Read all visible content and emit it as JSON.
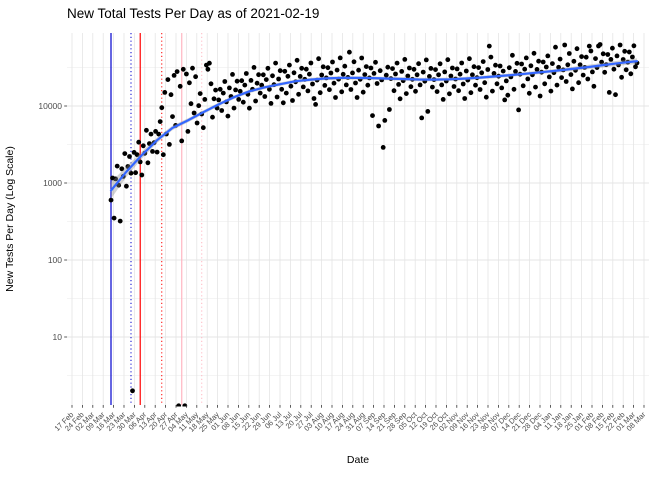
{
  "title": "New Total Tests Per Day as of 2021-02-19",
  "x_axis": {
    "label": "Date",
    "tick_labels": [
      "17 Feb",
      "24 Feb",
      "02 Mar",
      "09 Mar",
      "16 Mar",
      "23 Mar",
      "30 Mar",
      "06 Apr",
      "13 Apr",
      "20 Apr",
      "27 Apr",
      "04 May",
      "11 May",
      "18 May",
      "25 May",
      "01 Jun",
      "08 Jun",
      "15 Jun",
      "22 Jun",
      "29 Jun",
      "06 Jul",
      "13 Jul",
      "20 Jul",
      "27 Jul",
      "03 Aug",
      "10 Aug",
      "17 Aug",
      "24 Aug",
      "31 Aug",
      "07 Sep",
      "14 Sep",
      "21 Sep",
      "28 Sep",
      "05 Oct",
      "12 Oct",
      "19 Oct",
      "26 Oct",
      "02 Nov",
      "09 Nov",
      "16 Nov",
      "23 Nov",
      "30 Nov",
      "07 Dec",
      "14 Dec",
      "21 Dec",
      "28 Dec",
      "04 Jan",
      "11 Jan",
      "18 Jan",
      "25 Jan",
      "01 Feb",
      "08 Feb",
      "15 Feb",
      "22 Feb",
      "01 Mar",
      "08 Mar"
    ]
  },
  "y_axis": {
    "label": "New Tests Per Day (Log Scale)",
    "tick_labels": [
      "10000",
      "1000",
      "100",
      "10"
    ],
    "tick_values": [
      10000,
      1000,
      100,
      10
    ],
    "scale": "log10"
  },
  "colors": {
    "point": "#000000",
    "trend": "#3366FF",
    "band": "#8C8C8C",
    "grid_major": "#E4E4E4",
    "grid_minor": "#F1F1F1",
    "axis_text": "#4D4D4D",
    "tick_mark": "#333333",
    "vline_blue": "#0000CD",
    "vline_red": "#FF0000",
    "vline_pink": "#FFB6C1"
  },
  "chart_data": {
    "type": "scatter",
    "title": "New Total Tests Per Day as of 2021-02-19",
    "xlabel": "Date",
    "ylabel": "New Tests Per Day (Log Scale)",
    "y_scale": "log10",
    "ylim": [
      1.3,
      90000
    ],
    "x_unit": "day index, day 0 = first plotted observation (between the 09 Mar and 16 Mar ticks), last day = 2021-02-19",
    "legend": "none",
    "grid": "on",
    "reference_lines": [
      {
        "name": "vline-blue-solid",
        "day": 0,
        "color": "#0000CD",
        "style": "solid"
      },
      {
        "name": "vline-blue-dotted",
        "day": 13,
        "color": "#0000CD",
        "style": "dotted"
      },
      {
        "name": "vline-red-solid",
        "day": 19,
        "color": "#FF0000",
        "style": "solid"
      },
      {
        "name": "vline-red-dotted",
        "day": 33,
        "color": "#FF0000",
        "style": "dotted"
      },
      {
        "name": "vline-pink-solid",
        "day": 46,
        "color": "#FFB6C1",
        "style": "solid"
      },
      {
        "name": "vline-pink-dotted",
        "day": 59,
        "color": "#FFB6C1",
        "style": "dotted"
      }
    ],
    "trend": [
      [
        0,
        800
      ],
      [
        10,
        1400
      ],
      [
        20,
        2300
      ],
      [
        30,
        3600
      ],
      [
        40,
        5200
      ],
      [
        50,
        6500
      ],
      [
        60,
        8300
      ],
      [
        70,
        10500
      ],
      [
        80,
        13000
      ],
      [
        90,
        15500
      ],
      [
        100,
        17500
      ],
      [
        110,
        19200
      ],
      [
        120,
        21000
      ],
      [
        130,
        22000
      ],
      [
        140,
        22800
      ],
      [
        150,
        23200
      ],
      [
        160,
        23200
      ],
      [
        170,
        23000
      ],
      [
        180,
        22700
      ],
      [
        190,
        22400
      ],
      [
        200,
        22100
      ],
      [
        210,
        22000
      ],
      [
        220,
        22200
      ],
      [
        230,
        22700
      ],
      [
        240,
        23400
      ],
      [
        250,
        24200
      ],
      [
        260,
        25200
      ],
      [
        270,
        26300
      ],
      [
        280,
        27500
      ],
      [
        290,
        28800
      ],
      [
        300,
        30300
      ],
      [
        310,
        32000
      ],
      [
        320,
        34000
      ],
      [
        330,
        36000
      ],
      [
        340,
        37800
      ],
      [
        342,
        38200
      ]
    ],
    "points": [
      [
        0,
        600
      ],
      [
        1,
        1160
      ],
      [
        2,
        350
      ],
      [
        3,
        1130
      ],
      [
        4,
        1660
      ],
      [
        5,
        935
      ],
      [
        6,
        320
      ],
      [
        7,
        1530
      ],
      [
        8,
        1220
      ],
      [
        9,
        2410
      ],
      [
        10,
        910
      ],
      [
        11,
        1640
      ],
      [
        12,
        2210
      ],
      [
        13,
        1340
      ],
      [
        14,
        2
      ],
      [
        15,
        2500
      ],
      [
        16,
        1360
      ],
      [
        17,
        2330
      ],
      [
        18,
        3390
      ],
      [
        19,
        1880
      ],
      [
        20,
        1270
      ],
      [
        21,
        3040
      ],
      [
        22,
        2430
      ],
      [
        23,
        4840
      ],
      [
        24,
        1830
      ],
      [
        25,
        3250
      ],
      [
        26,
        4310
      ],
      [
        27,
        2570
      ],
      [
        28,
        3340
      ],
      [
        29,
        4680
      ],
      [
        30,
        2520
      ],
      [
        31,
        4320
      ],
      [
        32,
        6270
      ],
      [
        33,
        9500
      ],
      [
        34,
        2330
      ],
      [
        35,
        15000
      ],
      [
        36,
        4330
      ],
      [
        37,
        22000
      ],
      [
        38,
        3170
      ],
      [
        39,
        14000
      ],
      [
        40,
        7280
      ],
      [
        41,
        25000
      ],
      [
        42,
        5600
      ],
      [
        43,
        28000
      ],
      [
        44,
        1
      ],
      [
        45,
        18000
      ],
      [
        46,
        3520
      ],
      [
        47,
        30000
      ],
      [
        48,
        1
      ],
      [
        49,
        26000
      ],
      [
        50,
        4680
      ],
      [
        51,
        20000
      ],
      [
        52,
        10700
      ],
      [
        53,
        31000
      ],
      [
        54,
        8120
      ],
      [
        55,
        24000
      ],
      [
        56,
        6010
      ],
      [
        57,
        10100
      ],
      [
        58,
        14500
      ],
      [
        59,
        7880
      ],
      [
        60,
        5230
      ],
      [
        61,
        12200
      ],
      [
        62,
        34000
      ],
      [
        63,
        30000
      ],
      [
        64,
        36000
      ],
      [
        65,
        19400
      ],
      [
        66,
        7150
      ],
      [
        67,
        12400
      ],
      [
        68,
        16100
      ],
      [
        69,
        9400
      ],
      [
        70,
        12000
      ],
      [
        71,
        16500
      ],
      [
        72,
        8750
      ],
      [
        73,
        14700
      ],
      [
        74,
        20800
      ],
      [
        75,
        11300
      ],
      [
        76,
        7400
      ],
      [
        77,
        17200
      ],
      [
        78,
        13300
      ],
      [
        79,
        25700
      ],
      [
        80,
        9400
      ],
      [
        81,
        16200
      ],
      [
        82,
        21000
      ],
      [
        83,
        12200
      ],
      [
        84,
        15500
      ],
      [
        85,
        21300
      ],
      [
        86,
        11200
      ],
      [
        87,
        18700
      ],
      [
        88,
        26400
      ],
      [
        89,
        14200
      ],
      [
        90,
        9350
      ],
      [
        91,
        21500
      ],
      [
        92,
        16500
      ],
      [
        93,
        31700
      ],
      [
        94,
        11600
      ],
      [
        95,
        19800
      ],
      [
        96,
        25500
      ],
      [
        97,
        14700
      ],
      [
        98,
        18600
      ],
      [
        99,
        25400
      ],
      [
        100,
        13300
      ],
      [
        101,
        22000
      ],
      [
        102,
        30900
      ],
      [
        103,
        16500
      ],
      [
        104,
        10800
      ],
      [
        105,
        24700
      ],
      [
        106,
        18900
      ],
      [
        107,
        36100
      ],
      [
        108,
        13100
      ],
      [
        109,
        22400
      ],
      [
        110,
        28700
      ],
      [
        111,
        16500
      ],
      [
        112,
        11000
      ],
      [
        113,
        28200
      ],
      [
        114,
        14700
      ],
      [
        115,
        24300
      ],
      [
        116,
        34000
      ],
      [
        117,
        18100
      ],
      [
        118,
        11800
      ],
      [
        119,
        27000
      ],
      [
        120,
        20600
      ],
      [
        121,
        39200
      ],
      [
        122,
        14200
      ],
      [
        123,
        24200
      ],
      [
        124,
        30900
      ],
      [
        125,
        17700
      ],
      [
        126,
        22200
      ],
      [
        127,
        30100
      ],
      [
        128,
        15700
      ],
      [
        129,
        25900
      ],
      [
        130,
        36200
      ],
      [
        131,
        19300
      ],
      [
        132,
        12500
      ],
      [
        133,
        10500
      ],
      [
        134,
        21700
      ],
      [
        135,
        41200
      ],
      [
        136,
        14900
      ],
      [
        137,
        25300
      ],
      [
        138,
        32300
      ],
      [
        139,
        18500
      ],
      [
        140,
        23200
      ],
      [
        141,
        31400
      ],
      [
        142,
        16300
      ],
      [
        143,
        26800
      ],
      [
        144,
        37300
      ],
      [
        145,
        19800
      ],
      [
        146,
        12900
      ],
      [
        147,
        29300
      ],
      [
        148,
        22300
      ],
      [
        149,
        42200
      ],
      [
        150,
        15300
      ],
      [
        151,
        25800
      ],
      [
        152,
        32900
      ],
      [
        153,
        18800
      ],
      [
        154,
        23500
      ],
      [
        155,
        50000
      ],
      [
        156,
        16400
      ],
      [
        157,
        26900
      ],
      [
        158,
        37500
      ],
      [
        159,
        19900
      ],
      [
        160,
        12900
      ],
      [
        161,
        29200
      ],
      [
        162,
        22200
      ],
      [
        163,
        42000
      ],
      [
        164,
        15100
      ],
      [
        165,
        25600
      ],
      [
        166,
        32500
      ],
      [
        167,
        18600
      ],
      [
        168,
        23200
      ],
      [
        169,
        31200
      ],
      [
        170,
        7500
      ],
      [
        171,
        26500
      ],
      [
        172,
        36900
      ],
      [
        173,
        19600
      ],
      [
        174,
        5500
      ],
      [
        175,
        28700
      ],
      [
        176,
        21800
      ],
      [
        177,
        2900
      ],
      [
        178,
        6500
      ],
      [
        179,
        25100
      ],
      [
        180,
        31900
      ],
      [
        181,
        9000
      ],
      [
        182,
        22700
      ],
      [
        183,
        30600
      ],
      [
        184,
        15800
      ],
      [
        185,
        26000
      ],
      [
        186,
        36100
      ],
      [
        187,
        19100
      ],
      [
        188,
        12400
      ],
      [
        189,
        28100
      ],
      [
        190,
        21300
      ],
      [
        191,
        40300
      ],
      [
        192,
        14500
      ],
      [
        193,
        24500
      ],
      [
        194,
        31200
      ],
      [
        195,
        17800
      ],
      [
        196,
        22200
      ],
      [
        197,
        30000
      ],
      [
        198,
        15500
      ],
      [
        199,
        25400
      ],
      [
        200,
        35400
      ],
      [
        201,
        18800
      ],
      [
        202,
        7000
      ],
      [
        203,
        27600
      ],
      [
        204,
        21000
      ],
      [
        205,
        39700
      ],
      [
        206,
        8500
      ],
      [
        207,
        24200
      ],
      [
        208,
        30800
      ],
      [
        209,
        17600
      ],
      [
        210,
        22000
      ],
      [
        211,
        29700
      ],
      [
        212,
        15400
      ],
      [
        213,
        25400
      ],
      [
        214,
        35300
      ],
      [
        215,
        18800
      ],
      [
        216,
        12200
      ],
      [
        217,
        27700
      ],
      [
        218,
        21100
      ],
      [
        219,
        39900
      ],
      [
        220,
        14400
      ],
      [
        221,
        24500
      ],
      [
        222,
        31200
      ],
      [
        223,
        17900
      ],
      [
        224,
        22400
      ],
      [
        225,
        30300
      ],
      [
        226,
        15800
      ],
      [
        227,
        25900
      ],
      [
        228,
        36200
      ],
      [
        229,
        19300
      ],
      [
        230,
        12500
      ],
      [
        231,
        28500
      ],
      [
        232,
        21700
      ],
      [
        233,
        41200
      ],
      [
        234,
        14900
      ],
      [
        235,
        25400
      ],
      [
        236,
        32400
      ],
      [
        237,
        18600
      ],
      [
        238,
        23300
      ],
      [
        239,
        31500
      ],
      [
        240,
        16400
      ],
      [
        241,
        27000
      ],
      [
        242,
        37700
      ],
      [
        243,
        20100
      ],
      [
        244,
        13000
      ],
      [
        245,
        29800
      ],
      [
        246,
        60000
      ],
      [
        247,
        43100
      ],
      [
        248,
        15600
      ],
      [
        249,
        26500
      ],
      [
        250,
        33900
      ],
      [
        251,
        19400
      ],
      [
        252,
        24400
      ],
      [
        253,
        33100
      ],
      [
        254,
        17200
      ],
      [
        255,
        28400
      ],
      [
        256,
        12000
      ],
      [
        257,
        21200
      ],
      [
        258,
        13800
      ],
      [
        259,
        31400
      ],
      [
        260,
        23900
      ],
      [
        261,
        45600
      ],
      [
        262,
        16500
      ],
      [
        263,
        28100
      ],
      [
        264,
        35900
      ],
      [
        265,
        8900
      ],
      [
        266,
        25900
      ],
      [
        267,
        35100
      ],
      [
        268,
        18300
      ],
      [
        269,
        30100
      ],
      [
        270,
        42100
      ],
      [
        271,
        22500
      ],
      [
        272,
        14600
      ],
      [
        273,
        33300
      ],
      [
        274,
        25400
      ],
      [
        275,
        48400
      ],
      [
        276,
        17600
      ],
      [
        277,
        29900
      ],
      [
        278,
        38200
      ],
      [
        279,
        13500
      ],
      [
        280,
        27500
      ],
      [
        281,
        37300
      ],
      [
        282,
        19400
      ],
      [
        283,
        32100
      ],
      [
        284,
        44800
      ],
      [
        285,
        23900
      ],
      [
        286,
        15600
      ],
      [
        287,
        35500
      ],
      [
        288,
        27100
      ],
      [
        289,
        58000
      ],
      [
        290,
        18700
      ],
      [
        291,
        31800
      ],
      [
        292,
        40700
      ],
      [
        293,
        23400
      ],
      [
        294,
        29400
      ],
      [
        295,
        62000
      ],
      [
        296,
        20800
      ],
      [
        297,
        34300
      ],
      [
        298,
        48000
      ],
      [
        299,
        25600
      ],
      [
        300,
        16700
      ],
      [
        301,
        38100
      ],
      [
        302,
        29100
      ],
      [
        303,
        55500
      ],
      [
        304,
        20100
      ],
      [
        305,
        34300
      ],
      [
        306,
        43800
      ],
      [
        307,
        25200
      ],
      [
        308,
        31700
      ],
      [
        309,
        43000
      ],
      [
        310,
        22400
      ],
      [
        311,
        60000
      ],
      [
        312,
        51800
      ],
      [
        313,
        27700
      ],
      [
        314,
        18000
      ],
      [
        315,
        41300
      ],
      [
        316,
        31500
      ],
      [
        317,
        60100
      ],
      [
        318,
        63000
      ],
      [
        319,
        37200
      ],
      [
        320,
        47600
      ],
      [
        321,
        27400
      ],
      [
        322,
        34400
      ],
      [
        323,
        46700
      ],
      [
        324,
        15000
      ],
      [
        325,
        40300
      ],
      [
        326,
        56300
      ],
      [
        327,
        30100
      ],
      [
        328,
        14000
      ],
      [
        329,
        44800
      ],
      [
        330,
        34200
      ],
      [
        331,
        62000
      ],
      [
        332,
        23600
      ],
      [
        333,
        40200
      ],
      [
        334,
        51400
      ],
      [
        335,
        29500
      ],
      [
        336,
        37100
      ],
      [
        337,
        50300
      ],
      [
        338,
        26200
      ],
      [
        339,
        43300
      ],
      [
        340,
        60500
      ],
      [
        341,
        32300
      ],
      [
        342,
        36300
      ]
    ]
  }
}
